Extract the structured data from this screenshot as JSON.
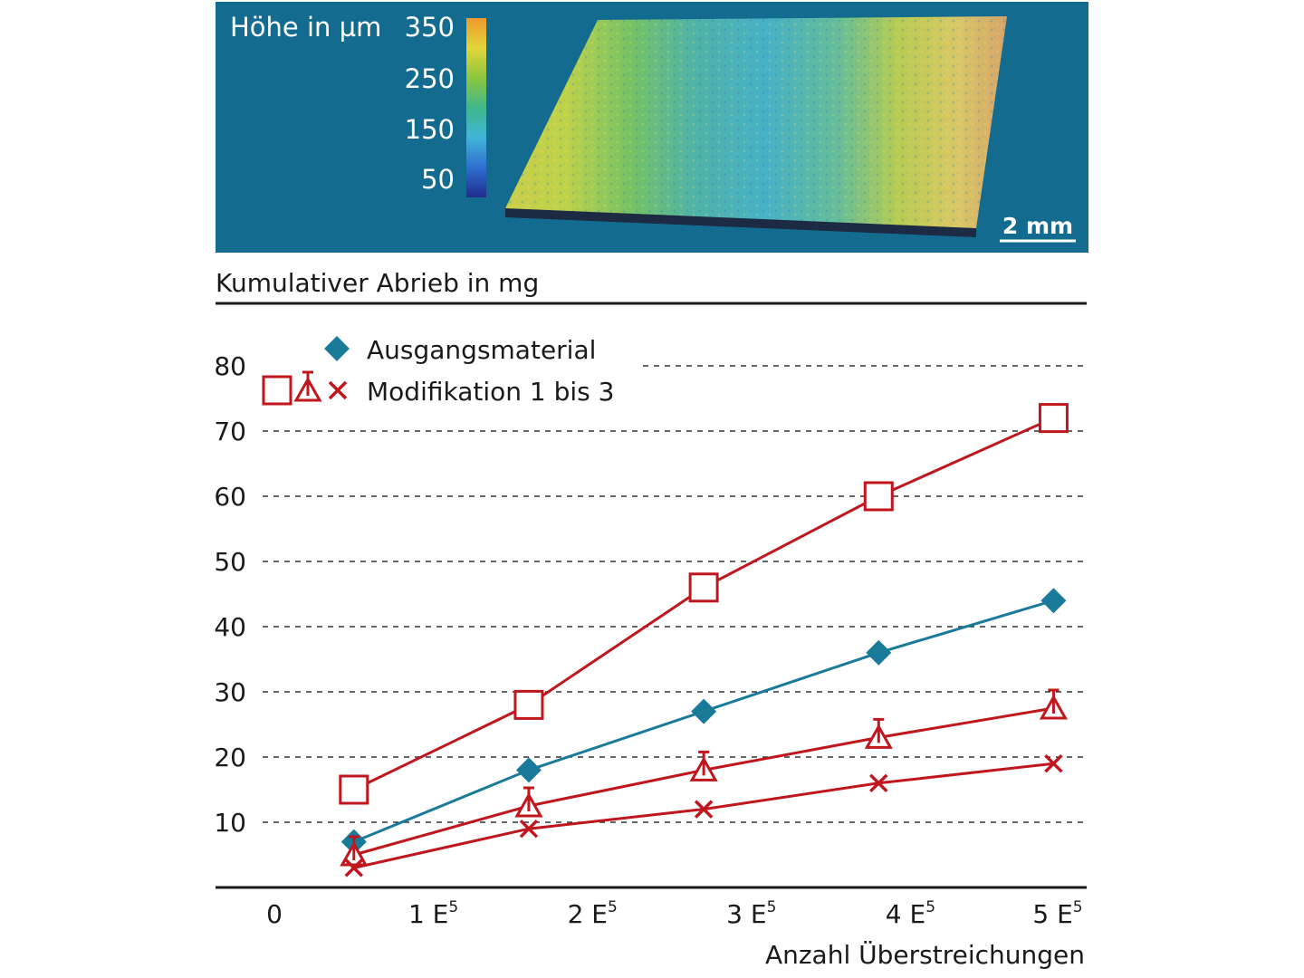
{
  "surface_map": {
    "colorbar_title": "Höhe in µm",
    "colorbar_ticks": [
      "350",
      "250",
      "150",
      "50"
    ],
    "colorbar_colors": [
      "#1f2d8c",
      "#2f6fd0",
      "#40b4d8",
      "#3fb88a",
      "#8cc63f",
      "#e2d63a",
      "#ef9a2e"
    ],
    "background_color": "#136c8f",
    "scale_label": "2 mm"
  },
  "chart_data": {
    "type": "line",
    "ylabel": "Kumulativer Abrieb in mg",
    "xlabel": "Anzahl Überstreichungen",
    "xlim": [
      0,
      500000
    ],
    "ylim": [
      0,
      80
    ],
    "yticks": [
      10,
      20,
      30,
      40,
      50,
      60,
      70,
      80
    ],
    "ytick_labels": [
      "10",
      "20",
      "30",
      "40",
      "50",
      "60",
      "70",
      "80"
    ],
    "xticks": [
      0,
      100000,
      200000,
      300000,
      400000,
      500000
    ],
    "xtick_base_labels": [
      "0",
      "1 E",
      "2 E",
      "3 E",
      "4 E",
      "5 E"
    ],
    "xtick_exponent": "5",
    "grid": "horizontal dashed",
    "legend_position": "top-left",
    "legend": [
      {
        "label": "Ausgangsmaterial",
        "markers": [
          "diamond"
        ],
        "color": "#1a7a9a"
      },
      {
        "label": "Modifikation 1 bis 3",
        "markers": [
          "square",
          "triangle",
          "x"
        ],
        "color": "#c0161d"
      }
    ],
    "series": [
      {
        "marker": "diamond",
        "color": "#1a7a9a",
        "x": [
          50000,
          160000,
          270000,
          380000,
          490000
        ],
        "y": [
          7,
          18,
          27,
          36,
          44
        ]
      },
      {
        "marker": "square",
        "color": "#c0161d",
        "x": [
          50000,
          160000,
          270000,
          380000,
          490000
        ],
        "y": [
          15,
          28,
          46,
          60,
          72
        ]
      },
      {
        "marker": "triangle",
        "color": "#c0161d",
        "x": [
          50000,
          160000,
          270000,
          380000,
          490000
        ],
        "y": [
          5,
          12.5,
          18,
          23,
          27.5
        ]
      },
      {
        "marker": "x",
        "color": "#c0161d",
        "x": [
          50000,
          160000,
          270000,
          380000,
          490000
        ],
        "y": [
          3,
          9,
          12,
          16,
          19
        ]
      }
    ]
  }
}
